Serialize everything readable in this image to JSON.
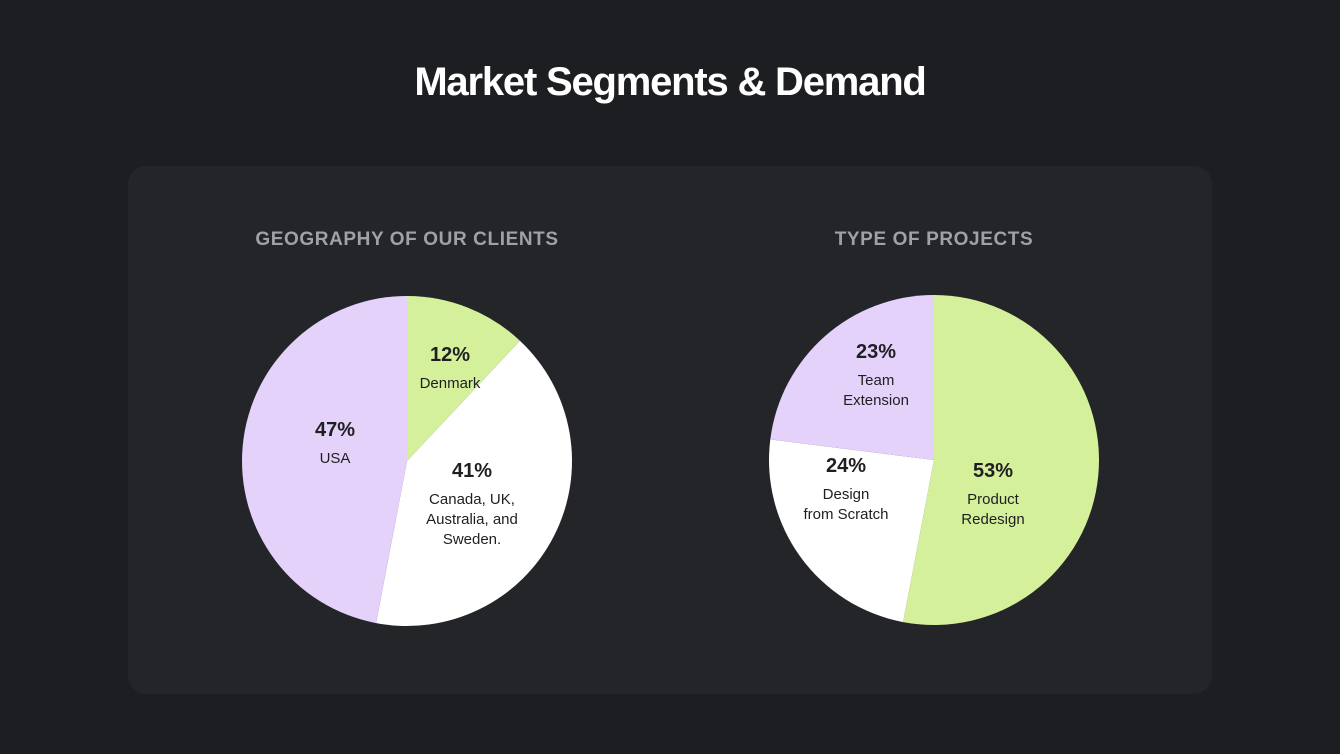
{
  "page": {
    "title": "Market Segments & Demand"
  },
  "chart_data": [
    {
      "type": "pie",
      "title": "GEOGRAPHY OF OUR CLIENTS",
      "slices": [
        {
          "pct_label": "12%",
          "value": 12,
          "label_lines": [
            "Denmark"
          ],
          "color": "#d4f09a"
        },
        {
          "pct_label": "41%",
          "value": 41,
          "label_lines": [
            "Canada, UK,",
            "Australia, and",
            "Sweden."
          ],
          "color": "#ffffff"
        },
        {
          "pct_label": "47%",
          "value": 47,
          "label_lines": [
            "USA"
          ],
          "color": "#e4d2fb"
        }
      ]
    },
    {
      "type": "pie",
      "title": "TYPE OF PROJECTS",
      "slices": [
        {
          "pct_label": "53%",
          "value": 53,
          "label_lines": [
            "Product",
            "Redesign"
          ],
          "color": "#d4f09a"
        },
        {
          "pct_label": "24%",
          "value": 24,
          "label_lines": [
            "Design",
            "from Scratch"
          ],
          "color": "#ffffff"
        },
        {
          "pct_label": "23%",
          "value": 23,
          "label_lines": [
            "Team",
            "Extension"
          ],
          "color": "#e4d2fb"
        }
      ]
    }
  ]
}
